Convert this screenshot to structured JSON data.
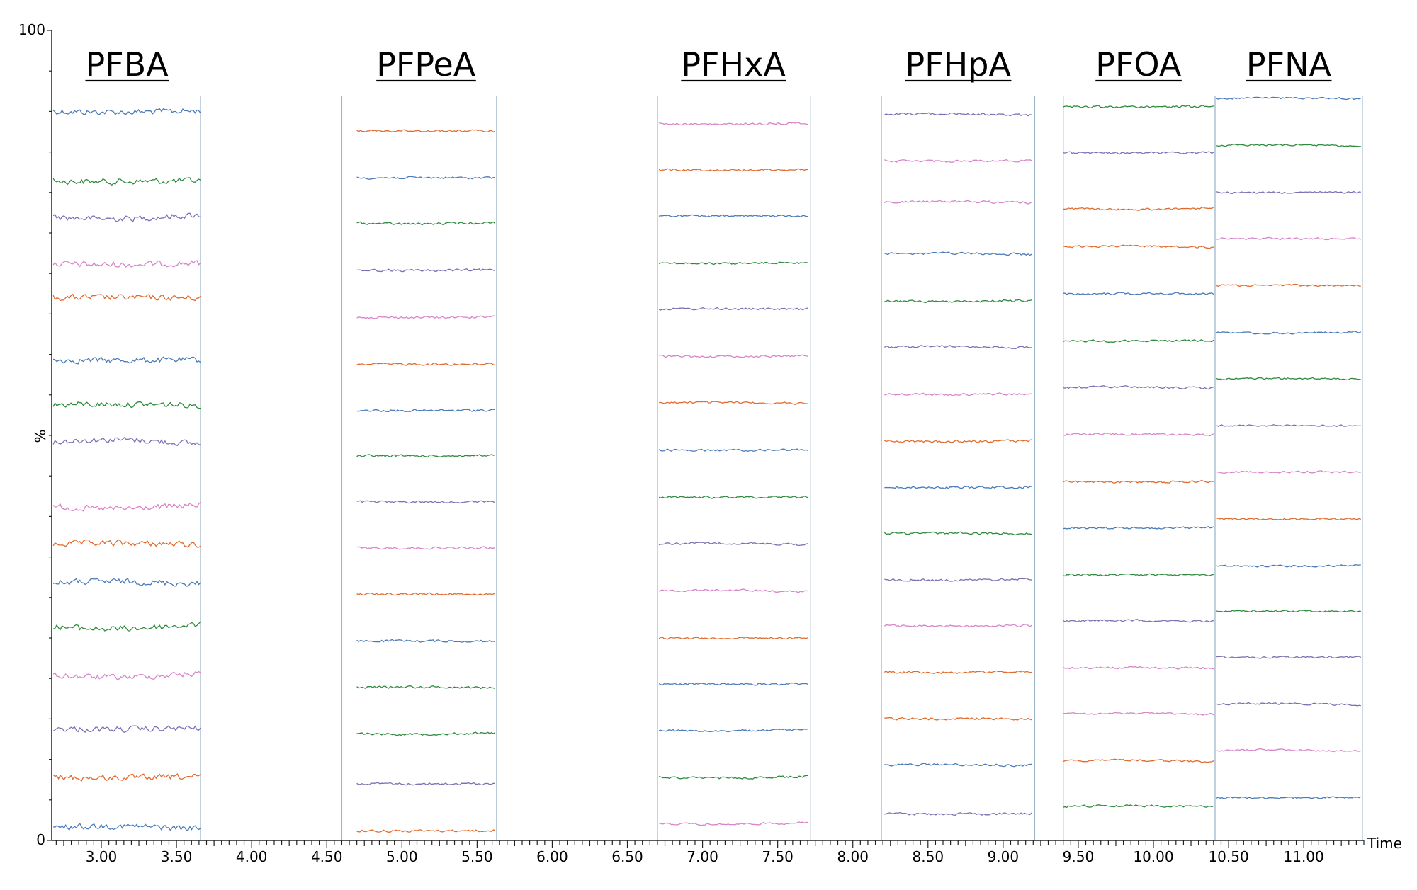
{
  "chart_data": {
    "type": "line",
    "xlabel": "Time",
    "ylabel": "%",
    "xlim": [
      2.67,
      11.4
    ],
    "ylim": [
      0,
      100
    ],
    "y_ticks": [
      "100",
      "0"
    ],
    "x_ticks": [
      "3.00",
      "3.50",
      "4.00",
      "4.50",
      "5.00",
      "5.50",
      "6.00",
      "6.50",
      "7.00",
      "7.50",
      "8.00",
      "8.50",
      "9.00",
      "9.50",
      "10.00",
      "10.50",
      "11.00"
    ],
    "x_minor_step": 0.05,
    "y_minor_step": 5,
    "grid": false,
    "colors": [
      "#4a7ab8",
      "#e26a2c",
      "#2e8b3e",
      "#7d6fb3",
      "#d884c8"
    ],
    "panels": [
      {
        "name": "PFBA",
        "x_start": 2.68,
        "x_end": 3.66,
        "noise": 0.55,
        "traces": [
          {
            "y": 90.0,
            "color": 0
          },
          {
            "y": 81.4,
            "color": 2
          },
          {
            "y": 77.0,
            "color": 3
          },
          {
            "y": 71.2,
            "color": 4
          },
          {
            "y": 67.0,
            "color": 1
          },
          {
            "y": 59.3,
            "color": 0
          },
          {
            "y": 53.8,
            "color": 2
          },
          {
            "y": 49.2,
            "color": 3
          },
          {
            "y": 41.2,
            "color": 4
          },
          {
            "y": 36.6,
            "color": 1
          },
          {
            "y": 31.8,
            "color": 0
          },
          {
            "y": 26.4,
            "color": 2
          },
          {
            "y": 20.4,
            "color": 4
          },
          {
            "y": 13.8,
            "color": 3
          },
          {
            "y": 7.8,
            "color": 1
          },
          {
            "y": 1.6,
            "color": 0
          }
        ]
      },
      {
        "name": "PFPeA",
        "x_start": 4.7,
        "x_end": 5.62,
        "noise": 0.22,
        "traces": [
          {
            "y": 87.6,
            "color": 1
          },
          {
            "y": 81.8,
            "color": 0
          },
          {
            "y": 76.2,
            "color": 2
          },
          {
            "y": 70.4,
            "color": 3
          },
          {
            "y": 64.6,
            "color": 4
          },
          {
            "y": 58.8,
            "color": 1
          },
          {
            "y": 53.1,
            "color": 0
          },
          {
            "y": 47.5,
            "color": 2
          },
          {
            "y": 41.8,
            "color": 3
          },
          {
            "y": 36.1,
            "color": 4
          },
          {
            "y": 30.4,
            "color": 1
          },
          {
            "y": 24.6,
            "color": 0
          },
          {
            "y": 18.9,
            "color": 2
          },
          {
            "y": 13.2,
            "color": 2
          },
          {
            "y": 7.0,
            "color": 3
          },
          {
            "y": 1.2,
            "color": 1
          }
        ]
      },
      {
        "name": "PFHxA",
        "x_start": 6.71,
        "x_end": 7.7,
        "noise": 0.2,
        "traces": [
          {
            "y": 88.5,
            "color": 4
          },
          {
            "y": 82.8,
            "color": 1
          },
          {
            "y": 77.1,
            "color": 0
          },
          {
            "y": 71.3,
            "color": 2
          },
          {
            "y": 65.6,
            "color": 3
          },
          {
            "y": 59.8,
            "color": 4
          },
          {
            "y": 54.0,
            "color": 1
          },
          {
            "y": 48.2,
            "color": 0
          },
          {
            "y": 42.4,
            "color": 2
          },
          {
            "y": 36.6,
            "color": 3
          },
          {
            "y": 30.8,
            "color": 4
          },
          {
            "y": 25.0,
            "color": 1
          },
          {
            "y": 19.3,
            "color": 0
          },
          {
            "y": 13.6,
            "color": 0
          },
          {
            "y": 7.8,
            "color": 2
          },
          {
            "y": 2.1,
            "color": 4
          }
        ]
      },
      {
        "name": "PFHpA",
        "x_start": 8.21,
        "x_end": 9.19,
        "noise": 0.22,
        "traces": [
          {
            "y": 89.6,
            "color": 3
          },
          {
            "y": 83.9,
            "color": 4
          },
          {
            "y": 78.8,
            "color": 4
          },
          {
            "y": 72.4,
            "color": 0
          },
          {
            "y": 66.6,
            "color": 2
          },
          {
            "y": 60.9,
            "color": 3
          },
          {
            "y": 55.1,
            "color": 4
          },
          {
            "y": 49.3,
            "color": 1
          },
          {
            "y": 43.6,
            "color": 0
          },
          {
            "y": 37.9,
            "color": 2
          },
          {
            "y": 32.2,
            "color": 3
          },
          {
            "y": 26.5,
            "color": 4
          },
          {
            "y": 20.8,
            "color": 1
          },
          {
            "y": 15.0,
            "color": 1
          },
          {
            "y": 9.3,
            "color": 0
          },
          {
            "y": 3.3,
            "color": 3
          }
        ]
      },
      {
        "name": "PFOA",
        "x_start": 9.4,
        "x_end": 10.4,
        "noise": 0.2,
        "traces": [
          {
            "y": 90.6,
            "color": 2
          },
          {
            "y": 84.9,
            "color": 3
          },
          {
            "y": 78.0,
            "color": 1
          },
          {
            "y": 73.3,
            "color": 1
          },
          {
            "y": 67.5,
            "color": 0
          },
          {
            "y": 61.7,
            "color": 2
          },
          {
            "y": 55.9,
            "color": 3
          },
          {
            "y": 50.1,
            "color": 4
          },
          {
            "y": 44.3,
            "color": 1
          },
          {
            "y": 38.6,
            "color": 0
          },
          {
            "y": 32.8,
            "color": 2
          },
          {
            "y": 27.1,
            "color": 3
          },
          {
            "y": 21.3,
            "color": 4
          },
          {
            "y": 15.6,
            "color": 4
          },
          {
            "y": 9.8,
            "color": 1
          },
          {
            "y": 4.2,
            "color": 2
          }
        ]
      },
      {
        "name": "PFNA",
        "x_start": 10.42,
        "x_end": 11.38,
        "noise": 0.18,
        "traces": [
          {
            "y": 91.6,
            "color": 0
          },
          {
            "y": 85.8,
            "color": 2
          },
          {
            "y": 80.0,
            "color": 3
          },
          {
            "y": 74.3,
            "color": 4
          },
          {
            "y": 68.5,
            "color": 1
          },
          {
            "y": 62.7,
            "color": 0
          },
          {
            "y": 57.0,
            "color": 2
          },
          {
            "y": 51.2,
            "color": 3
          },
          {
            "y": 45.5,
            "color": 4
          },
          {
            "y": 39.7,
            "color": 1
          },
          {
            "y": 33.9,
            "color": 0
          },
          {
            "y": 28.3,
            "color": 2
          },
          {
            "y": 22.6,
            "color": 3
          },
          {
            "y": 16.8,
            "color": 3
          },
          {
            "y": 11.1,
            "color": 4
          },
          {
            "y": 5.3,
            "color": 0
          }
        ]
      }
    ],
    "separators": [
      3.66,
      4.6,
      5.63,
      6.7,
      7.72,
      8.19,
      9.21,
      9.4,
      10.41,
      11.39
    ]
  }
}
